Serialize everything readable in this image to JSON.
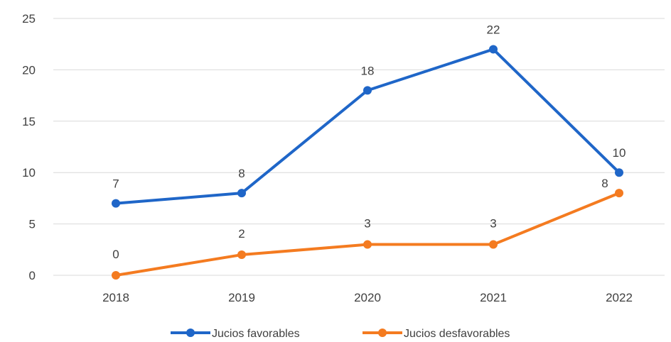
{
  "chart_data": {
    "type": "line",
    "categories": [
      "2018",
      "2019",
      "2020",
      "2021",
      "2022"
    ],
    "ylim": [
      0,
      25
    ],
    "yticks": [
      0,
      5,
      10,
      15,
      20,
      25
    ],
    "grid": true,
    "legend_position": "bottom",
    "series": [
      {
        "name": "Jucios favorables",
        "values": [
          7,
          8,
          18,
          22,
          10
        ],
        "color": "#1f66c8"
      },
      {
        "name": "Jucios desfavorables",
        "values": [
          0,
          2,
          3,
          3,
          8
        ],
        "color": "#f47b20"
      }
    ]
  }
}
